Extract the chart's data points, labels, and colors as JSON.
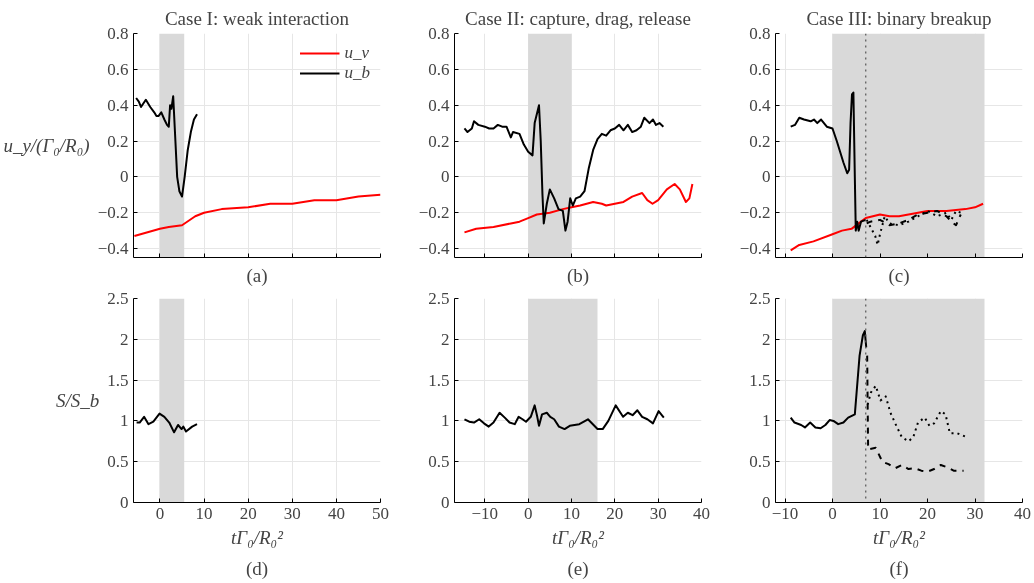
{
  "chart_data": [
    {
      "type": "line",
      "title": "Case I: weak interaction",
      "ylabel": "u_y/(Γ₀/R₀)",
      "annotations": [
        "(a)"
      ],
      "xlim": [
        -6,
        50
      ],
      "xticks": [
        0,
        10,
        20,
        30,
        40,
        50
      ],
      "ylim": [
        -0.45,
        0.8
      ],
      "yticks": [
        -0.4,
        -0.2,
        0,
        0.2,
        0.4,
        0.6,
        0.8
      ],
      "grid": true,
      "tick_labels": "y",
      "legend": "top right",
      "bands": [
        {
          "axis": "x",
          "from": 0,
          "to": 5.5,
          "color": "#d9d9d9"
        }
      ],
      "series": [
        {
          "name": "u_v",
          "color": "#ff0000",
          "x": [
            -5.8,
            0,
            2,
            5,
            8,
            10,
            14,
            20,
            25,
            28,
            30,
            35,
            38,
            40,
            45,
            50
          ],
          "values": [
            -0.33,
            -0.29,
            -0.28,
            -0.27,
            -0.22,
            -0.2,
            -0.18,
            -0.17,
            -0.15,
            -0.15,
            -0.15,
            -0.13,
            -0.13,
            -0.13,
            -0.11,
            -0.1
          ]
        },
        {
          "name": "u_b",
          "color": "#000000",
          "x": [
            -5.4,
            -4.8,
            -4.3,
            -3.2,
            -2.2,
            -1.3,
            -0.8,
            -0.3,
            0.3,
            1,
            1.6,
            2,
            2.3,
            2.6,
            3,
            3.5,
            3.9,
            4.4,
            5,
            5.6,
            6.3,
            7,
            7.7,
            8.4
          ],
          "values": [
            0.44,
            0.42,
            0.39,
            0.43,
            0.39,
            0.36,
            0.34,
            0.34,
            0.36,
            0.32,
            0.29,
            0.28,
            0.4,
            0.38,
            0.45,
            0.2,
            0,
            -0.08,
            -0.11,
            0,
            0.15,
            0.25,
            0.32,
            0.35
          ]
        }
      ]
    },
    {
      "type": "line",
      "title": "Case II: capture, drag, release",
      "annotations": [
        "(b)"
      ],
      "xlim": [
        -17,
        40
      ],
      "xticks": [
        -10,
        0,
        10,
        20,
        30,
        40
      ],
      "ylim": [
        -0.45,
        0.8
      ],
      "yticks": [
        -0.4,
        -0.2,
        0,
        0.2,
        0.4,
        0.6,
        0.8
      ],
      "grid": true,
      "tick_labels": "y",
      "bands": [
        {
          "axis": "x",
          "from": 0,
          "to": 10,
          "color": "#d9d9d9"
        }
      ],
      "series": [
        {
          "color": "#ff0000",
          "x": [
            -14.7,
            -12,
            -8,
            -4,
            -2,
            0,
            2,
            5,
            8,
            10,
            12,
            15,
            17,
            18,
            20,
            22,
            24,
            26.3,
            27.5,
            28.7,
            30,
            32,
            33.8,
            35,
            36.4,
            37.2,
            37.9
          ],
          "values": [
            -0.31,
            -0.29,
            -0.28,
            -0.26,
            -0.25,
            -0.23,
            -0.21,
            -0.2,
            -0.18,
            -0.17,
            -0.16,
            -0.14,
            -0.15,
            -0.16,
            -0.15,
            -0.14,
            -0.11,
            -0.09,
            -0.13,
            -0.15,
            -0.13,
            -0.07,
            -0.04,
            -0.07,
            -0.14,
            -0.12,
            -0.04
          ]
        },
        {
          "color": "#000000",
          "x": [
            -14.7,
            -14,
            -13,
            -12.5,
            -11.5,
            -10,
            -9,
            -8,
            -7,
            -6,
            -5,
            -4,
            -3.5,
            -2,
            -1,
            0,
            1,
            1.5,
            2.5,
            2.9,
            3.3,
            3.6,
            4.3,
            5,
            6,
            7,
            8,
            8.6,
            9.1,
            9.7,
            10.3,
            11,
            12,
            13,
            14,
            15,
            16,
            17,
            18,
            19,
            20,
            21,
            22,
            23,
            24,
            25,
            26,
            26.8,
            28,
            28.8,
            29.5,
            30.3,
            31.2
          ],
          "values": [
            0.27,
            0.25,
            0.27,
            0.31,
            0.29,
            0.28,
            0.27,
            0.27,
            0.29,
            0.28,
            0.28,
            0.22,
            0.25,
            0.24,
            0.18,
            0.14,
            0.12,
            0.3,
            0.4,
            0.2,
            -0.1,
            -0.26,
            -0.15,
            -0.07,
            -0.12,
            -0.18,
            -0.19,
            -0.3,
            -0.25,
            -0.12,
            -0.16,
            -0.12,
            -0.11,
            -0.08,
            0.05,
            0.15,
            0.21,
            0.24,
            0.23,
            0.26,
            0.27,
            0.29,
            0.26,
            0.29,
            0.25,
            0.26,
            0.28,
            0.33,
            0.3,
            0.32,
            0.29,
            0.3,
            0.28
          ]
        }
      ]
    },
    {
      "type": "line",
      "title": "Case III: binary breakup",
      "annotations": [
        "(c)"
      ],
      "xlim": [
        -12,
        40
      ],
      "xticks": [
        -10,
        0,
        10,
        20,
        30,
        40
      ],
      "ylim": [
        -0.45,
        0.8
      ],
      "yticks": [
        -0.4,
        -0.2,
        0,
        0.2,
        0.4,
        0.6,
        0.8
      ],
      "grid": true,
      "tick_labels": "y",
      "bands": [
        {
          "axis": "x",
          "from": 0,
          "to": 32,
          "color": "#d9d9d9"
        }
      ],
      "ref_lines": [
        {
          "axis": "x",
          "value": 7,
          "color": "#555555",
          "line_style": "dotted"
        }
      ],
      "series": [
        {
          "color": "#ff0000",
          "x": [
            -8.8,
            -7,
            -4,
            0,
            2,
            4,
            6,
            7,
            10,
            12,
            14,
            18,
            20,
            24,
            28,
            30,
            31.7
          ],
          "values": [
            -0.41,
            -0.38,
            -0.36,
            -0.32,
            -0.3,
            -0.29,
            -0.25,
            -0.23,
            -0.21,
            -0.22,
            -0.22,
            -0.2,
            -0.19,
            -0.19,
            -0.18,
            -0.17,
            -0.15
          ]
        },
        {
          "color": "#000000",
          "line_style": "solid",
          "x": [
            -8.8,
            -7.9,
            -7,
            -6,
            -4.6,
            -3.9,
            -3.2,
            -2.4,
            -1.2,
            0,
            0.9,
            2.3,
            3.1,
            3.5,
            3.8,
            4.1,
            4.4,
            4.7,
            4.9,
            5.2,
            5.5,
            6,
            7
          ],
          "values": [
            0.28,
            0.29,
            0.33,
            0.32,
            0.31,
            0.32,
            0.3,
            0.32,
            0.28,
            0.27,
            0.2,
            0.08,
            0.02,
            0.04,
            0.3,
            0.46,
            0.47,
            0,
            -0.3,
            -0.25,
            -0.3,
            -0.25,
            -0.24
          ]
        },
        {
          "color": "#000000",
          "line_style": "dotted",
          "x": [
            7.2,
            8,
            9,
            9.5,
            10,
            11,
            12,
            14,
            16,
            18,
            20,
            22,
            24,
            25,
            26,
            27
          ],
          "values": [
            -0.24,
            -0.28,
            -0.33,
            -0.38,
            -0.32,
            -0.22,
            -0.26,
            -0.27,
            -0.25,
            -0.22,
            -0.19,
            -0.22,
            -0.2,
            -0.24,
            -0.19,
            -0.2
          ]
        },
        {
          "color": "#000000",
          "line_style": "dashed",
          "x": [
            7.2,
            8,
            10,
            12,
            14,
            16,
            18,
            20,
            22,
            24,
            25,
            26,
            27
          ],
          "values": [
            -0.26,
            -0.25,
            -0.24,
            -0.27,
            -0.26,
            -0.24,
            -0.21,
            -0.2,
            -0.19,
            -0.22,
            -0.25,
            -0.27,
            -0.21
          ]
        }
      ]
    },
    {
      "type": "line",
      "xlabel": "tΓ₀/R₀²",
      "ylabel": "S/S_b",
      "annotations": [
        "(d)"
      ],
      "xlim": [
        -6,
        50
      ],
      "xticks": [
        0,
        10,
        20,
        30,
        40,
        50
      ],
      "ylim": [
        0,
        2.5
      ],
      "yticks": [
        0,
        0.5,
        1,
        1.5,
        2,
        2.5
      ],
      "grid": true,
      "bands": [
        {
          "axis": "x",
          "from": 0,
          "to": 5.5,
          "color": "#d9d9d9"
        }
      ],
      "series": [
        {
          "color": "#000000",
          "x": [
            -5.3,
            -4.6,
            -3.6,
            -2.6,
            -1.5,
            -0.1,
            1,
            2.1,
            3.2,
            4.1,
            4.9,
            5.3,
            5.9,
            7.3,
            8.4
          ],
          "values": [
            0.98,
            0.98,
            1.05,
            0.96,
            0.99,
            1.09,
            1.05,
            0.98,
            0.86,
            0.95,
            0.9,
            0.93,
            0.87,
            0.93,
            0.96
          ]
        }
      ]
    },
    {
      "type": "line",
      "xlabel": "tΓ₀/R₀²",
      "annotations": [
        "(e)"
      ],
      "xlim": [
        -17,
        40
      ],
      "xticks": [
        -10,
        0,
        10,
        20,
        30,
        40
      ],
      "ylim": [
        0,
        2.5
      ],
      "yticks": [
        0,
        0.5,
        1,
        1.5,
        2,
        2.5
      ],
      "grid": true,
      "bands": [
        {
          "axis": "x",
          "from": 0,
          "to": 16,
          "color": "#d9d9d9"
        }
      ],
      "series": [
        {
          "color": "#000000",
          "x": [
            -14.7,
            -13.6,
            -12.5,
            -11.3,
            -10.2,
            -9.1,
            -8,
            -6.6,
            -5.4,
            -4.3,
            -3.1,
            -2.2,
            -1.3,
            -0.5,
            0.6,
            1.5,
            2.1,
            2.5,
            3.2,
            4.3,
            5.1,
            6,
            7.1,
            8.4,
            9.6,
            10.7,
            11.8,
            13.8,
            15.1,
            16,
            17.2,
            18.5,
            20.2,
            21.9,
            23,
            24.1,
            25.2,
            26.3,
            27.5,
            28.8,
            30.1,
            31.3
          ],
          "values": [
            1.02,
            0.99,
            0.98,
            1.02,
            0.97,
            0.93,
            0.98,
            1.1,
            1.04,
            0.98,
            0.96,
            1.05,
            1.02,
            0.99,
            1.05,
            1.19,
            1.05,
            0.94,
            1.08,
            1.1,
            1.05,
            1.02,
            0.93,
            0.9,
            0.94,
            0.95,
            0.96,
            1.02,
            0.95,
            0.9,
            0.9,
            1.0,
            1.19,
            1.05,
            1.1,
            1.07,
            1.13,
            1.05,
            1.02,
            0.97,
            1.12,
            1.04
          ]
        }
      ]
    },
    {
      "type": "line",
      "xlabel": "tΓ₀/R₀²",
      "annotations": [
        "(f)"
      ],
      "xlim": [
        -12,
        40
      ],
      "xticks": [
        -10,
        0,
        10,
        20,
        30,
        40
      ],
      "ylim": [
        0,
        2.5
      ],
      "yticks": [
        0,
        0.5,
        1,
        1.5,
        2,
        2.5
      ],
      "grid": true,
      "bands": [
        {
          "axis": "x",
          "from": 0,
          "to": 32,
          "color": "#d9d9d9"
        }
      ],
      "ref_lines": [
        {
          "axis": "x",
          "value": 7,
          "color": "#555555",
          "line_style": "dotted"
        }
      ],
      "series": [
        {
          "color": "#000000",
          "line_style": "solid",
          "x": [
            -8.8,
            -8,
            -6.6,
            -5.8,
            -4.7,
            -3.6,
            -2.5,
            -1.5,
            -0.6,
            0.2,
            1.2,
            2.3,
            3.3,
            4.7,
            5.7,
            6.4,
            6.8,
            7.1
          ],
          "values": [
            1.04,
            0.98,
            0.95,
            0.92,
            0.98,
            0.92,
            0.91,
            0.95,
            1.01,
            1.0,
            0.96,
            0.98,
            1.04,
            1.08,
            1.8,
            2.05,
            2.1,
            1.9
          ]
        },
        {
          "color": "#000000",
          "line_style": "dashed",
          "x": [
            7.3,
            7.4,
            7.5,
            9.1,
            10.5,
            11.8,
            13.2,
            14.6,
            16,
            17.3,
            18.7,
            20.1,
            21.4,
            22.8,
            24.2,
            25.5,
            27.6
          ],
          "values": [
            1.8,
            1.2,
            0.65,
            0.67,
            0.5,
            0.47,
            0.42,
            0.46,
            0.41,
            0.42,
            0.39,
            0.38,
            0.41,
            0.46,
            0.43,
            0.39,
            0.39
          ]
        },
        {
          "color": "#000000",
          "line_style": "dotted",
          "x": [
            7.4,
            8.1,
            9.1,
            10.1,
            11.2,
            12.2,
            13.2,
            14.6,
            16,
            17,
            18,
            19.4,
            20.4,
            21.4,
            22.8,
            23.8,
            24.7,
            26.2,
            27.9
          ],
          "values": [
            1.2,
            1.35,
            1.43,
            1.25,
            1.3,
            1.1,
            0.97,
            0.8,
            0.75,
            0.8,
            0.98,
            1.04,
            0.94,
            0.97,
            1.12,
            1.08,
            0.85,
            0.85,
            0.81
          ]
        }
      ]
    }
  ]
}
